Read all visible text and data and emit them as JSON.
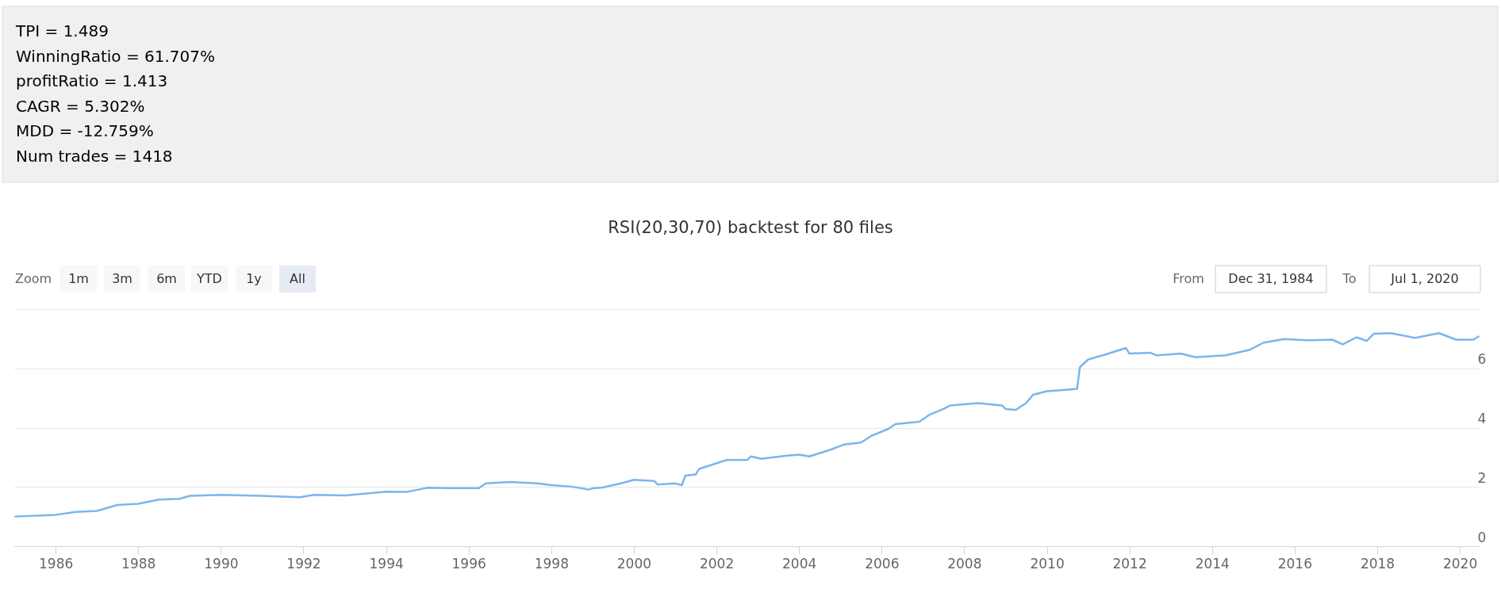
{
  "chart_data": {
    "type": "line",
    "title": "RSI(20,30,70) backtest for 80 files",
    "annotations": [
      "TPI = 1.489",
      "WinningRatio = 61.707%",
      "profitRatio = 1.413",
      "CAGR = 5.302%",
      "MDD = -12.759%",
      "Num trades = 1418",
      "Zoom",
      "1m",
      "3m",
      "6m",
      "YTD",
      "1y",
      "All",
      "From",
      "Dec 31, 1984",
      "To",
      "Jul 1, 2020"
    ],
    "x": [
      "1985-01",
      "1986-01",
      "1986-07",
      "1987-01",
      "1987-07",
      "1988-01",
      "1988-07",
      "1989-01",
      "1989-04",
      "1990-01",
      "1991-01",
      "1991-12",
      "1992-04",
      "1993-01",
      "1994-01",
      "1994-07",
      "1995-01",
      "1995-07",
      "1996-04",
      "1996-06",
      "1997-01",
      "1997-09",
      "1998-01",
      "1998-07",
      "1998-12",
      "1999-01",
      "1999-04",
      "1999-10",
      "2000-01",
      "2000-07",
      "2000-08",
      "2001-01",
      "2001-03",
      "2001-04",
      "2001-07",
      "2001-08",
      "2002-04",
      "2002-10",
      "2002-11",
      "2003-02",
      "2003-09",
      "2004-01",
      "2004-04",
      "2004-10",
      "2005-02",
      "2005-07",
      "2005-10",
      "2006-03",
      "2006-05",
      "2006-12",
      "2007-03",
      "2007-07",
      "2007-09",
      "2008-05",
      "2008-12",
      "2009-01",
      "2009-04",
      "2009-07",
      "2009-09",
      "2010-01",
      "2010-08",
      "2010-09-25",
      "2010-10-20",
      "2011-01",
      "2011-07",
      "2011-12",
      "2012-01",
      "2012-07",
      "2012-09",
      "2013-04",
      "2013-08",
      "2014-05",
      "2014-12",
      "2015-04",
      "2015-10",
      "2016-05",
      "2016-12",
      "2017-03",
      "2017-07",
      "2017-10",
      "2017-12",
      "2018-05",
      "2018-12",
      "2019-07",
      "2019-12",
      "2020-05",
      "2020-06-20"
    ],
    "values": [
      1.0,
      1.06,
      1.16,
      1.19,
      1.39,
      1.43,
      1.57,
      1.6,
      1.7,
      1.73,
      1.7,
      1.65,
      1.73,
      1.71,
      1.84,
      1.83,
      1.97,
      1.96,
      1.96,
      2.12,
      2.17,
      2.12,
      2.06,
      2.01,
      1.91,
      1.95,
      1.98,
      2.14,
      2.24,
      2.2,
      2.08,
      2.12,
      2.06,
      2.38,
      2.42,
      2.61,
      2.91,
      2.91,
      3.03,
      2.95,
      3.05,
      3.09,
      3.03,
      3.25,
      3.43,
      3.5,
      3.72,
      3.96,
      4.12,
      4.2,
      4.44,
      4.63,
      4.75,
      4.83,
      4.75,
      4.63,
      4.6,
      4.83,
      5.11,
      5.23,
      5.29,
      5.31,
      6.04,
      6.3,
      6.5,
      6.69,
      6.5,
      6.53,
      6.44,
      6.5,
      6.38,
      6.44,
      6.63,
      6.87,
      6.99,
      6.95,
      6.97,
      6.81,
      7.05,
      6.93,
      7.17,
      7.19,
      7.03,
      7.19,
      6.97,
      6.97,
      7.09
    ],
    "color": "#7cb5ec",
    "xlim": [
      "1984-12-31",
      "2020-07-01"
    ],
    "xticks": [
      "1986",
      "1988",
      "1990",
      "1992",
      "1994",
      "1996",
      "1998",
      "2000",
      "2002",
      "2004",
      "2006",
      "2008",
      "2010",
      "2012",
      "2014",
      "2016",
      "2018",
      "2020"
    ],
    "ylim": [
      0,
      8
    ],
    "yticks": [
      0,
      2,
      4,
      6,
      {
        "value": 8,
        "label": null
      }
    ],
    "grid": "y",
    "marker": "none",
    "line_style": "solid"
  }
}
